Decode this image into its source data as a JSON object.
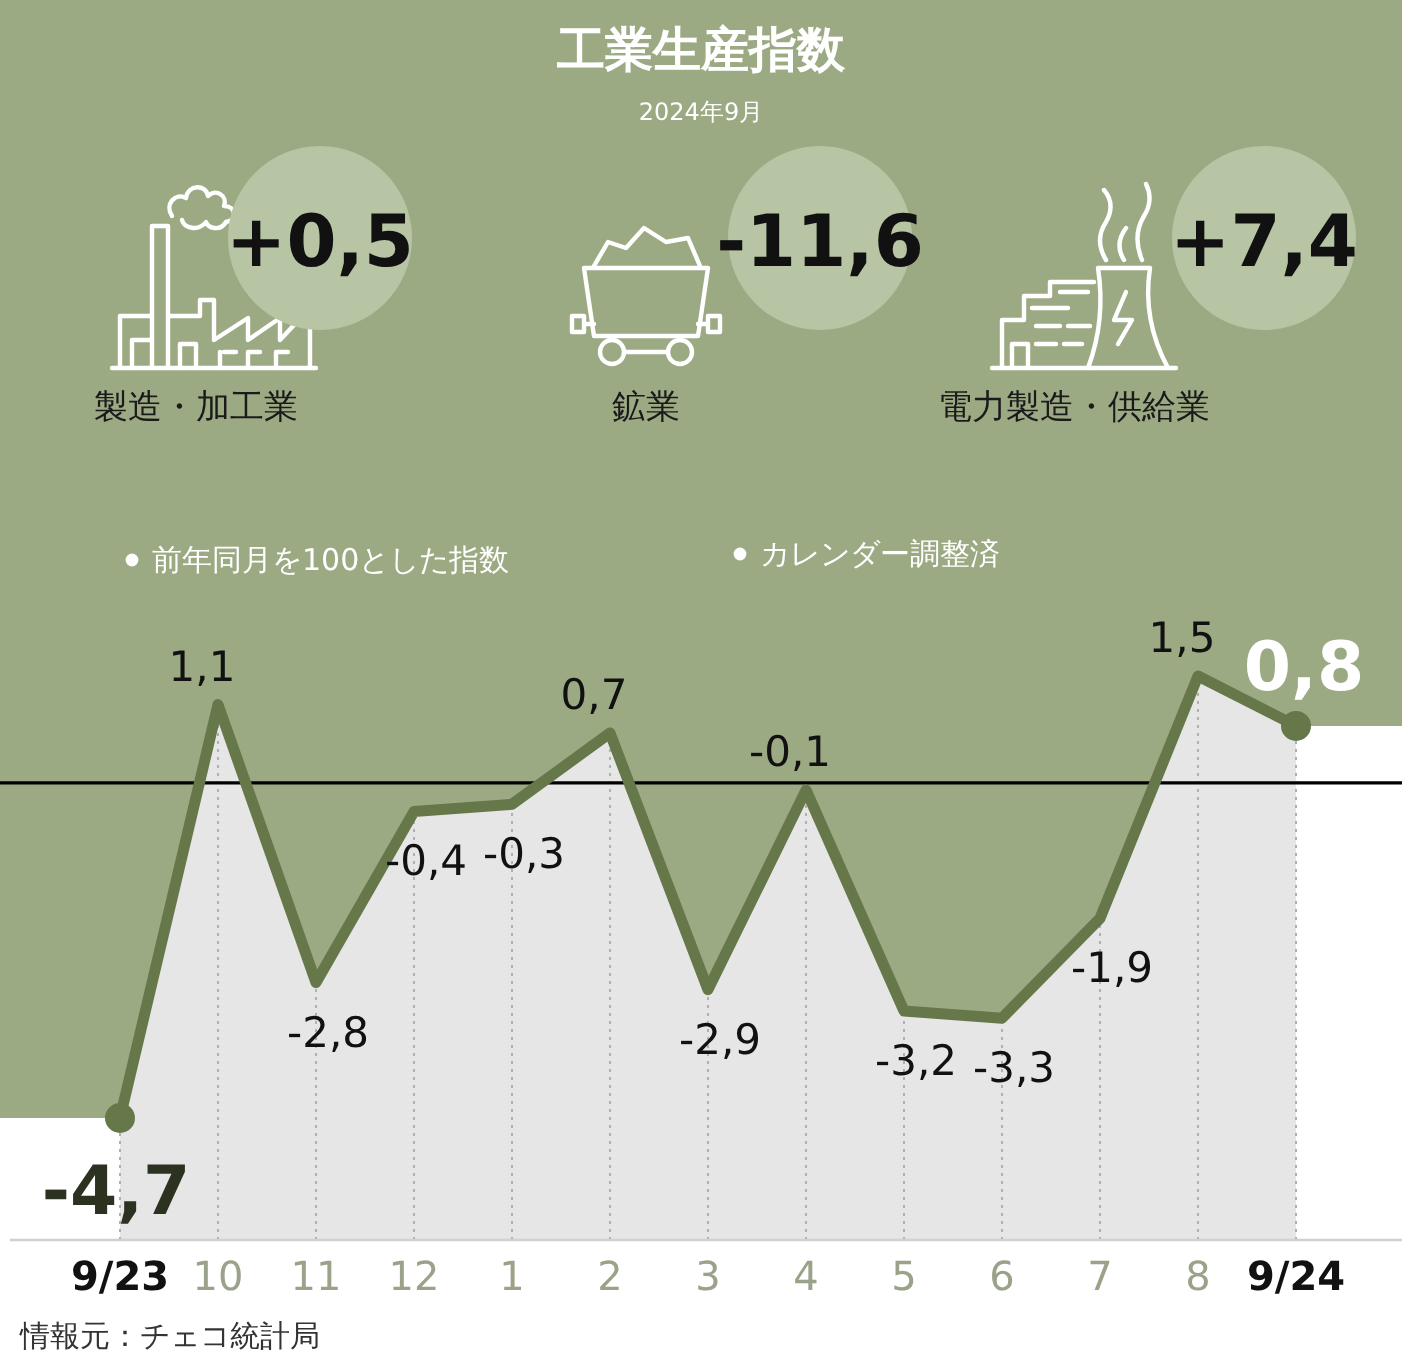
{
  "chart_data": [
    {
      "type": "other",
      "title": "工業生産指数",
      "subtitle": "2024年9月",
      "categories": [
        "製造・加工業",
        "鉱業",
        "電力製造・供給業"
      ],
      "value_labels": [
        "+0,5",
        "-11,6",
        "+7,4"
      ]
    },
    {
      "type": "line",
      "categories": [
        "9/23",
        "10",
        "11",
        "12",
        "1",
        "2",
        "3",
        "4",
        "5",
        "6",
        "7",
        "8",
        "9/24"
      ],
      "series": [
        {
          "type": "area",
          "color": "#66784a",
          "values": [
            -4.7,
            1.1,
            -2.8,
            -0.4,
            -0.3,
            0.7,
            -2.9,
            -0.1,
            -3.2,
            -3.3,
            -1.9,
            1.5,
            0.8
          ],
          "value_labels": [
            null,
            "1,1",
            "-2,8",
            "-0,4",
            "-0,3",
            "0,7",
            "-2,9",
            "-0,1",
            "-3,2",
            "-3,3",
            "-1,9",
            "1,5",
            null
          ]
        },
        {
          "type": "scatter",
          "color": "#66784a",
          "marker": "circle",
          "x": [
            "9/23",
            "9/24"
          ],
          "values": [
            -4.7,
            0.8
          ],
          "value_labels": [
            "-4,7",
            "0,8"
          ]
        }
      ],
      "grid": "x",
      "tick_labels": "x",
      "ref_lines": [
        {
          "axis": "y",
          "value": 0,
          "color": "#000000"
        }
      ],
      "annotations": [
        "前年同月を100とした指数",
        "カレンダー調整済",
        "情報元：チェコ統計局"
      ]
    }
  ]
}
